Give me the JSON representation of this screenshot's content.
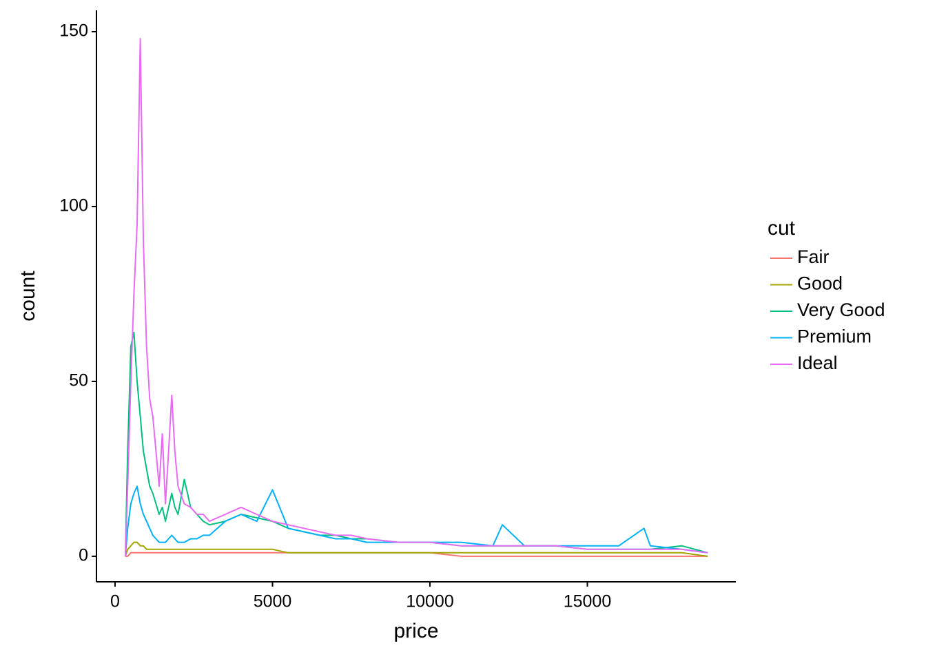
{
  "chart_data": {
    "type": "line",
    "x_label": "price",
    "y_label": "count",
    "legend_title": "cut",
    "x": [
      326,
      400,
      500,
      600,
      700,
      800,
      900,
      1000,
      1100,
      1200,
      1300,
      1400,
      1500,
      1600,
      1700,
      1800,
      1900,
      2000,
      2200,
      2400,
      2600,
      2800,
      3000,
      3500,
      4000,
      4500,
      5000,
      5500,
      6000,
      6500,
      7000,
      7500,
      8000,
      9000,
      10000,
      11000,
      12000,
      12300,
      13000,
      14000,
      15000,
      16000,
      16800,
      17000,
      18000,
      18823
    ],
    "series": [
      {
        "name": "Fair",
        "color": "#F8766D",
        "values": [
          0,
          0,
          1,
          1,
          1,
          1,
          1,
          1,
          1,
          1,
          1,
          1,
          1,
          1,
          1,
          1,
          1,
          1,
          1,
          1,
          1,
          1,
          1,
          1,
          1,
          1,
          1,
          1,
          1,
          1,
          1,
          1,
          1,
          1,
          1,
          0,
          0,
          0,
          0,
          0,
          0,
          0,
          0,
          0,
          0,
          0
        ]
      },
      {
        "name": "Good",
        "color": "#A3A500",
        "values": [
          0,
          2,
          3,
          4,
          4,
          3,
          3,
          2,
          2,
          2,
          2,
          2,
          2,
          2,
          2,
          2,
          2,
          2,
          2,
          2,
          2,
          2,
          2,
          2,
          2,
          2,
          2,
          1,
          1,
          1,
          1,
          1,
          1,
          1,
          1,
          1,
          1,
          1,
          1,
          1,
          1,
          1,
          1,
          1,
          1,
          0
        ]
      },
      {
        "name": "Very Good",
        "color": "#00BF7D",
        "values": [
          0,
          30,
          60,
          64,
          50,
          40,
          30,
          25,
          20,
          18,
          15,
          12,
          14,
          10,
          14,
          18,
          14,
          12,
          22,
          14,
          12,
          10,
          9,
          10,
          12,
          11,
          10,
          8,
          7,
          6,
          6,
          5,
          5,
          4,
          4,
          3,
          3,
          3,
          3,
          3,
          2,
          2,
          2,
          2,
          3,
          1
        ]
      },
      {
        "name": "Premium",
        "color": "#00B0F6",
        "values": [
          0,
          8,
          15,
          18,
          20,
          15,
          12,
          10,
          8,
          6,
          5,
          4,
          4,
          4,
          5,
          6,
          5,
          4,
          4,
          5,
          5,
          6,
          6,
          10,
          12,
          10,
          19,
          8,
          7,
          6,
          5,
          5,
          4,
          4,
          4,
          4,
          3,
          9,
          3,
          3,
          3,
          3,
          8,
          3,
          2,
          1
        ]
      },
      {
        "name": "Ideal",
        "color": "#E76BF3",
        "values": [
          0,
          20,
          50,
          75,
          95,
          148,
          90,
          60,
          45,
          40,
          30,
          20,
          35,
          15,
          30,
          46,
          30,
          20,
          15,
          14,
          12,
          12,
          10,
          12,
          14,
          12,
          10,
          9,
          8,
          7,
          6,
          6,
          5,
          4,
          4,
          3,
          3,
          3,
          3,
          3,
          2,
          2,
          2,
          2,
          2,
          1
        ]
      }
    ],
    "xlim": [
      -591,
      19716
    ],
    "xticks": [
      0,
      5000,
      10000,
      15000
    ],
    "ylim": [
      -7.3,
      156.1
    ],
    "yticks": [
      0,
      50,
      100,
      150
    ],
    "grid": false,
    "legend": "right"
  }
}
